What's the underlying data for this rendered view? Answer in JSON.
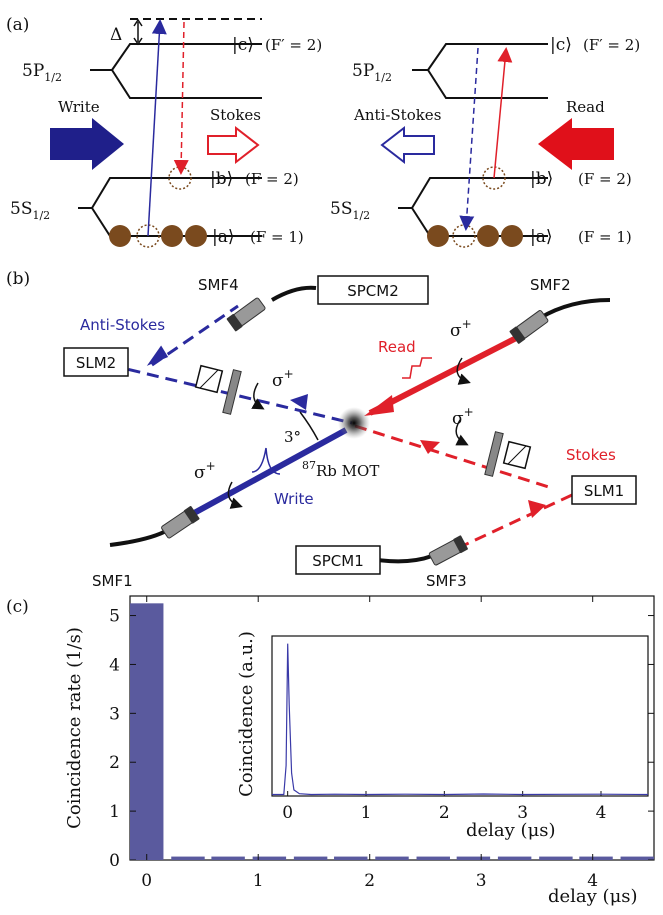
{
  "panel_a": {
    "label": "(a)",
    "left": {
      "excited_state": "5P",
      "excited_sub": "1/2",
      "ground_state": "5S",
      "ground_sub": "1/2",
      "c_ket": "|c⟩",
      "c_F": "(F′ = 2)",
      "b_ket": "|b⟩",
      "b_F": "(F = 2)",
      "a_ket": "|a⟩",
      "a_F": "(F = 1)",
      "delta": "Δ",
      "write_label": "Write",
      "stokes_label": "Stokes"
    },
    "right": {
      "excited_state": "5P",
      "excited_sub": "1/2",
      "ground_state": "5S",
      "ground_sub": "1/2",
      "c_ket": "|c⟩",
      "c_F": "(F′ = 2)",
      "b_ket": "|b⟩",
      "b_F": "(F = 2)",
      "a_ket": "|a⟩",
      "a_F": "(F = 1)",
      "read_label": "Read",
      "antistokes_label": "Anti-Stokes"
    }
  },
  "panel_b": {
    "label": "(b)",
    "smf4": "SMF4",
    "spcm2": "SPCM2",
    "smf2": "SMF2",
    "slm2": "SLM2",
    "anti_stokes": "Anti-Stokes",
    "read": "Read",
    "sigma_read": "σ",
    "sigma_plus": "+",
    "sigma_as": "σ",
    "sigma_stokes": "σ",
    "sigma_write": "σ",
    "angle": "3°",
    "mot_prefix": "87",
    "mot": "Rb MOT",
    "write": "Write",
    "stokes": "Stokes",
    "slm1": "SLM1",
    "smf1": "SMF1",
    "spcm1": "SPCM1",
    "smf3": "SMF3"
  },
  "panel_c": {
    "label": "(c)",
    "colors": {
      "bar": "#5a5a9e",
      "inset_line": "#3a3aa8"
    },
    "inset_ylabel": "Coincidence (a.u.)",
    "inset_xlabel": "delay (μs)"
  },
  "chart_data": [
    {
      "type": "bar",
      "title": "",
      "xlabel": "delay (μs)",
      "ylabel": "Coincidence rate (1/s)",
      "xlim": [
        -0.15,
        4.55
      ],
      "ylim": [
        0,
        5.4
      ],
      "xticks": [
        "0",
        "1",
        "2",
        "3",
        "4"
      ],
      "yticks": [
        "0",
        "1",
        "2",
        "3",
        "4",
        "5"
      ],
      "bar_width": 0.3,
      "x": [
        0,
        0.37,
        0.73,
        1.1,
        1.47,
        1.83,
        2.2,
        2.57,
        2.93,
        3.3,
        3.67,
        4.03,
        4.4
      ],
      "values": [
        5.25,
        0.07,
        0.07,
        0.07,
        0.07,
        0.07,
        0.07,
        0.07,
        0.07,
        0.07,
        0.07,
        0.07,
        0.07
      ]
    },
    {
      "type": "line",
      "title": "",
      "xlabel": "delay (μs)",
      "ylabel": "Coincidence (a.u.)",
      "xlim": [
        -0.2,
        4.6
      ],
      "ylim": [
        0,
        1.05
      ],
      "xticks": [
        "0",
        "1",
        "2",
        "3",
        "4"
      ],
      "x": [
        -0.2,
        -0.05,
        -0.02,
        0.0,
        0.02,
        0.05,
        0.08,
        0.15,
        0.3,
        0.6,
        1.0,
        1.5,
        2.0,
        2.5,
        3.0,
        3.5,
        4.0,
        4.6
      ],
      "y": [
        0.01,
        0.01,
        0.2,
        1.0,
        0.6,
        0.15,
        0.04,
        0.015,
        0.01,
        0.012,
        0.01,
        0.012,
        0.01,
        0.013,
        0.01,
        0.011,
        0.012,
        0.01
      ]
    }
  ]
}
